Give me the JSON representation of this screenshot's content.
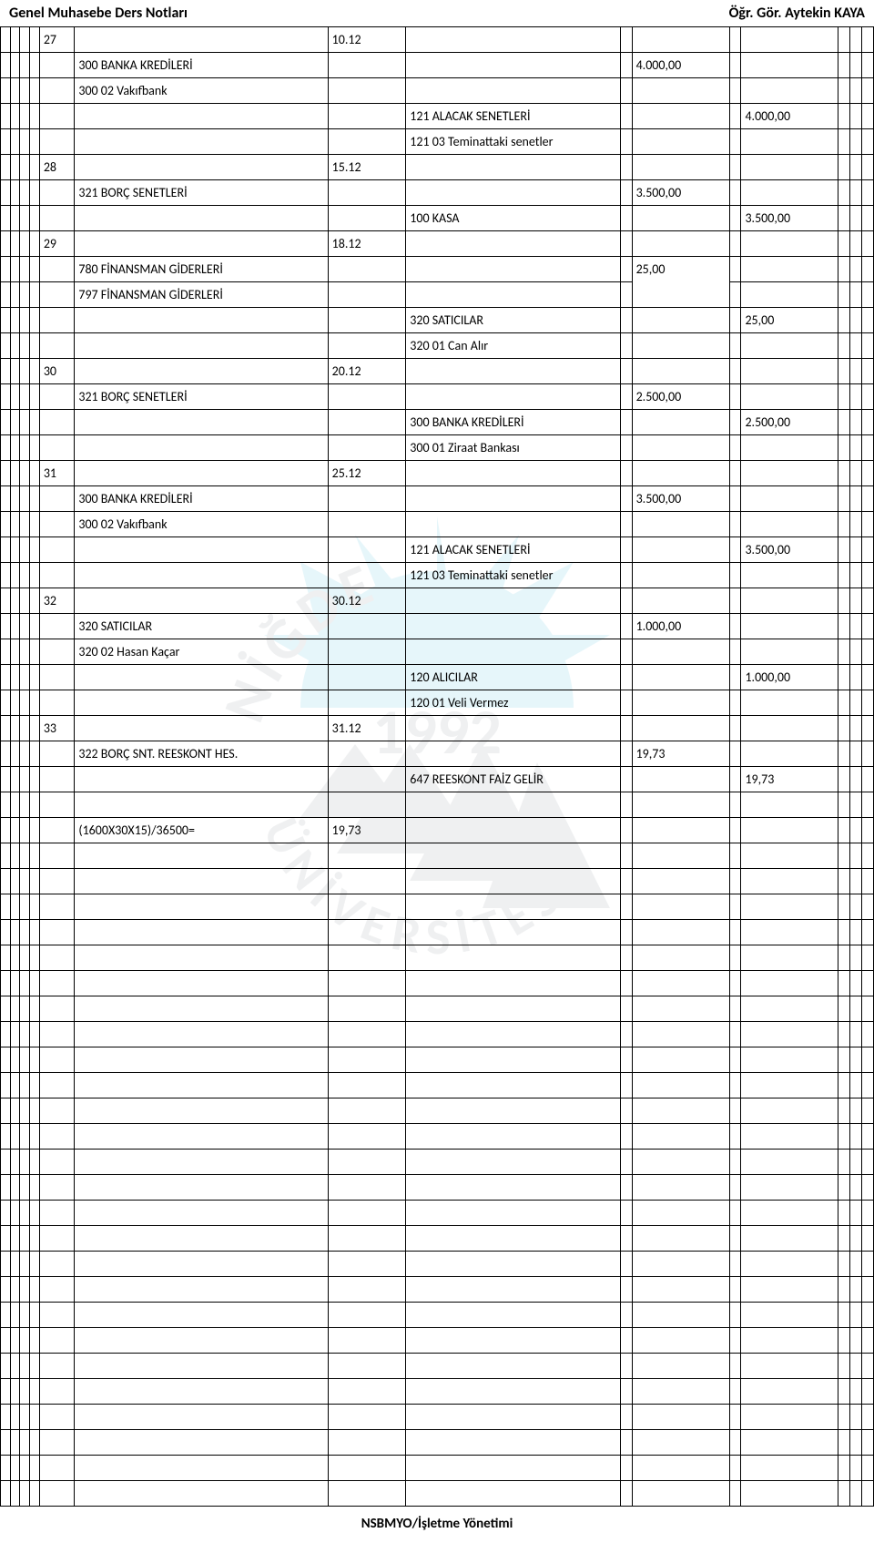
{
  "header": {
    "left": "Genel Muhasebe Ders Notları",
    "right": "Öğr. Gör. Aytekin KAYA"
  },
  "footer": "NSBMYO/İşletme Yönetimi",
  "rows": [
    {
      "idx": "27",
      "date": "10.12",
      "text": "",
      "right": "",
      "debit": "",
      "credit": ""
    },
    {
      "idx": "",
      "date": "",
      "text": "300 BANKA KREDİLERİ",
      "right": "",
      "debit": "4.000,00",
      "credit": ""
    },
    {
      "idx": "",
      "date": "",
      "text": "300 02 Vakıfbank",
      "right": "",
      "debit": "",
      "credit": ""
    },
    {
      "idx": "",
      "date": "",
      "text": "",
      "right": "121 ALACAK SENETLERİ",
      "debit": "",
      "credit": "4.000,00"
    },
    {
      "idx": "",
      "date": "",
      "text": "",
      "right": "121 03 Teminattaki senetler",
      "debit": "",
      "credit": ""
    },
    {
      "idx": "28",
      "date": "15.12",
      "text": "",
      "right": "",
      "debit": "",
      "credit": ""
    },
    {
      "idx": "",
      "date": "",
      "text": "321 BORÇ SENETLERİ",
      "right": "",
      "debit": "3.500,00",
      "credit": ""
    },
    {
      "idx": "",
      "date": "",
      "text": "",
      "right": "100 KASA",
      "debit": "",
      "credit": "3.500,00"
    },
    {
      "idx": "29",
      "date": "18.12",
      "text": "",
      "right": "",
      "debit": "",
      "credit": ""
    },
    {
      "idx": "",
      "date": "",
      "text": "780 FİNANSMAN GİDERLERİ",
      "right": "",
      "debit": "25,00",
      "credit": "",
      "merge_debit_down": true
    },
    {
      "idx": "",
      "date": "",
      "text": "797 FİNANSMAN GİDERLERİ",
      "right": "",
      "debit": "",
      "credit": "",
      "merge_debit_up": true
    },
    {
      "idx": "",
      "date": "",
      "text": "",
      "right": "320 SATICILAR",
      "debit": "",
      "credit": "25,00"
    },
    {
      "idx": "",
      "date": "",
      "text": "",
      "right": "320 01 Can Alır",
      "debit": "",
      "credit": ""
    },
    {
      "idx": "30",
      "date": "20.12",
      "text": "",
      "right": "",
      "debit": "",
      "credit": ""
    },
    {
      "idx": "",
      "date": "",
      "text": "321 BORÇ SENETLERİ",
      "right": "",
      "debit": "2.500,00",
      "credit": ""
    },
    {
      "idx": "",
      "date": "",
      "text": "",
      "right": "300 BANKA KREDİLERİ",
      "debit": "",
      "credit": "2.500,00"
    },
    {
      "idx": "",
      "date": "",
      "text": "",
      "right": "300 01 Ziraat Bankası",
      "debit": "",
      "credit": ""
    },
    {
      "idx": "31",
      "date": "25.12",
      "text": "",
      "right": "",
      "debit": "",
      "credit": ""
    },
    {
      "idx": "",
      "date": "",
      "text": "300 BANKA KREDİLERİ",
      "right": "",
      "debit": "3.500,00",
      "credit": ""
    },
    {
      "idx": "",
      "date": "",
      "text": "300 02 Vakıfbank",
      "right": "",
      "debit": "",
      "credit": ""
    },
    {
      "idx": "",
      "date": "",
      "text": "",
      "right": "121 ALACAK SENETLERİ",
      "debit": "",
      "credit": "3.500,00"
    },
    {
      "idx": "",
      "date": "",
      "text": "",
      "right": "121 03 Teminattaki senetler",
      "debit": "",
      "credit": ""
    },
    {
      "idx": "32",
      "date": "30.12",
      "text": "",
      "right": "",
      "debit": "",
      "credit": ""
    },
    {
      "idx": "",
      "date": "",
      "text": "320 SATICILAR",
      "right": "",
      "debit": "1.000,00",
      "credit": ""
    },
    {
      "idx": "",
      "date": "",
      "text": "320 02 Hasan Kaçar",
      "right": "",
      "debit": "",
      "credit": ""
    },
    {
      "idx": "",
      "date": "",
      "text": "",
      "right": "120 ALICILAR",
      "debit": "",
      "credit": "1.000,00"
    },
    {
      "idx": "",
      "date": "",
      "text": "",
      "right": "120 01 Veli Vermez",
      "debit": "",
      "credit": ""
    },
    {
      "idx": "33",
      "date": "31.12",
      "text": "",
      "right": "",
      "debit": "",
      "credit": ""
    },
    {
      "idx": "",
      "date": "",
      "text": "322 BORÇ SNT. REESKONT HES.",
      "right": "",
      "debit": "19,73",
      "credit": ""
    },
    {
      "idx": "",
      "date": "",
      "text": "",
      "right": "647 REESKONT FAİZ GELİR",
      "debit": "",
      "credit": "19,73"
    },
    {
      "blank": true
    },
    {
      "idx": "",
      "date": "",
      "text": "(1600X30X15)/36500=",
      "right_in_date": "19,73",
      "debit": "",
      "credit": ""
    },
    {
      "blank": true
    }
  ],
  "empty_rows": 25,
  "watermark": {
    "text_top": "NİĞDE",
    "year": "1992",
    "text_bottom": "ÜNİVERSİTESİ",
    "color": "#5fc4e0",
    "gray": "#9aa0a6"
  }
}
